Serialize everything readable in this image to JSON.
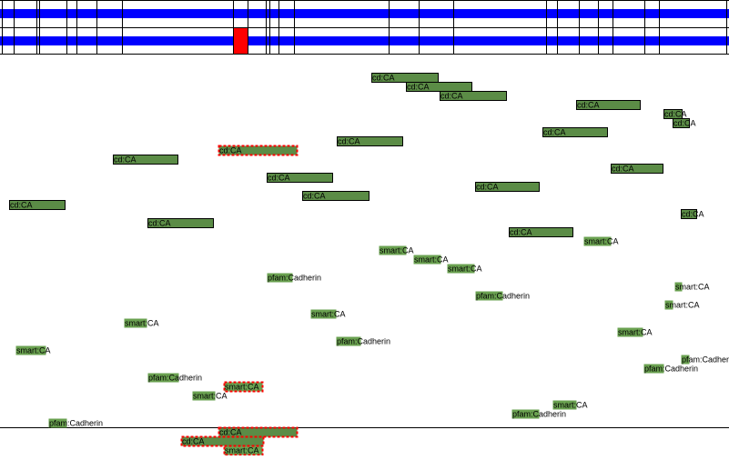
{
  "features": [
    {
      "label": "cd:CA"
    },
    {
      "label": "cd:CA"
    },
    {
      "label": "cd:CA"
    },
    {
      "label": "cd:CA"
    },
    {
      "label": "cd:CA"
    },
    {
      "label": "cd:CA"
    },
    {
      "label": "cd:CA"
    },
    {
      "label": "cd:CA"
    },
    {
      "label": "cd:CA"
    },
    {
      "label": "cd:CA"
    },
    {
      "label": "cd:CA"
    },
    {
      "label": "cd:CA"
    },
    {
      "label": "cd:CA"
    },
    {
      "label": "cd:CA"
    },
    {
      "label": "cd:CA"
    },
    {
      "label": "cd:CA"
    },
    {
      "label": "cd:CA"
    },
    {
      "label": "cd:CA"
    },
    {
      "label": "smart:CA"
    },
    {
      "label": "smart:CA"
    },
    {
      "label": "smart:CA"
    },
    {
      "label": "smart:CA"
    },
    {
      "label": "smart:CA"
    },
    {
      "label": "smart:CA"
    },
    {
      "label": "smart:CA"
    },
    {
      "label": "smart:CA"
    },
    {
      "label": "smart:CA"
    },
    {
      "label": "smart:CA"
    },
    {
      "label": "smart:CA"
    },
    {
      "label": "smart:CA"
    },
    {
      "label": "smart:CA"
    },
    {
      "label": "smart:CA"
    },
    {
      "label": "pfam:Cadherin"
    },
    {
      "label": "pfam:Cadherin"
    },
    {
      "label": "pfam:Cadherin"
    },
    {
      "label": "pfam:Cadherin"
    },
    {
      "label": "pfam:Cadherin"
    },
    {
      "label": "pfam:Cadherin"
    },
    {
      "label": "pfam:Cadherin"
    },
    {
      "label": "pfam:Cadherin"
    },
    {
      "label": "cd:CA"
    },
    {
      "label": "cd:CA"
    }
  ]
}
